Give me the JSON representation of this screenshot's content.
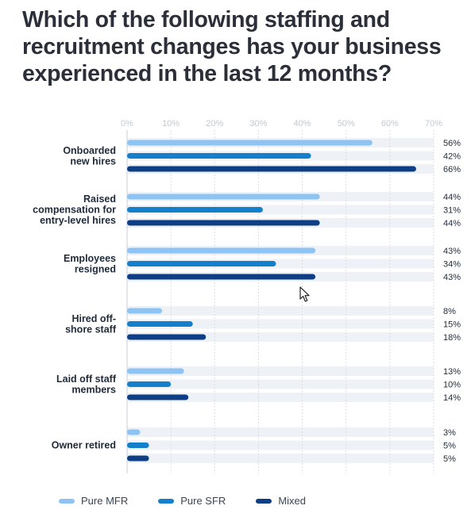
{
  "header": {
    "title": "Which of the following staffing and recruitment changes has your business experienced in the last 12 months?"
  },
  "chart_data": {
    "type": "bar",
    "orientation": "horizontal",
    "title": "Which of the following staffing and recruitment changes has your business experienced in the last 12 months?",
    "xlim": [
      0,
      70
    ],
    "xticks": [
      "0%",
      "10%",
      "20%",
      "30%",
      "40%",
      "50%",
      "60%",
      "70%"
    ],
    "grid": true,
    "legend_position": "bottom-left",
    "categories": [
      {
        "label_lines": [
          "Onboarded",
          "new hires"
        ]
      },
      {
        "label_lines": [
          "Raised",
          "compensation for",
          "entry-level hires"
        ]
      },
      {
        "label_lines": [
          "Employees",
          "resigned"
        ]
      },
      {
        "label_lines": [
          "Hired off-",
          "shore staff"
        ]
      },
      {
        "label_lines": [
          "Laid off staff",
          "members"
        ]
      },
      {
        "label_lines": [
          "Owner retired"
        ]
      }
    ],
    "series": [
      {
        "name": "Pure MFR",
        "color": "#8ec4f4",
        "values": [
          56,
          44,
          43,
          8,
          13,
          3
        ],
        "labels": [
          "56%",
          "44%",
          "43%",
          "8%",
          "13%",
          "3%"
        ]
      },
      {
        "name": "Pure SFR",
        "color": "#1480cc",
        "values": [
          42,
          31,
          34,
          15,
          10,
          5
        ],
        "labels": [
          "42%",
          "31%",
          "34%",
          "15%",
          "10%",
          "5%"
        ]
      },
      {
        "name": "Mixed",
        "color": "#0e3f86",
        "values": [
          66,
          44,
          43,
          18,
          14,
          5
        ],
        "labels": [
          "66%",
          "44%",
          "43%",
          "18%",
          "14%",
          "5%"
        ]
      }
    ]
  }
}
